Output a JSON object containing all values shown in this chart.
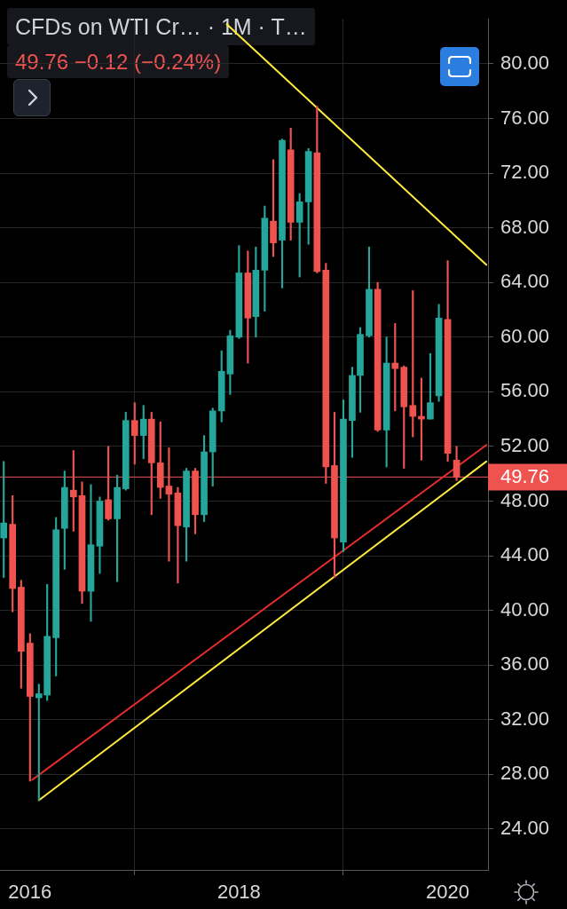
{
  "chart_data": {
    "type": "candlestick",
    "title": "CFDs on WTI Cr… · 1M · T…",
    "subtitle": "49.76 −0.12 (−0.24%)",
    "x": [
      "2015-10",
      "2015-11",
      "2015-12",
      "2016-01",
      "2016-02",
      "2016-03",
      "2016-04",
      "2016-05",
      "2016-06",
      "2016-07",
      "2016-08",
      "2016-09",
      "2016-10",
      "2016-11",
      "2016-12",
      "2017-01",
      "2017-02",
      "2017-03",
      "2017-04",
      "2017-05",
      "2017-06",
      "2017-07",
      "2017-08",
      "2017-09",
      "2017-10",
      "2017-11",
      "2017-12",
      "2018-01",
      "2018-02",
      "2018-03",
      "2018-04",
      "2018-05",
      "2018-06",
      "2018-07",
      "2018-08",
      "2018-09",
      "2018-10",
      "2018-11",
      "2018-12",
      "2019-01",
      "2019-02",
      "2019-03",
      "2019-04",
      "2019-05",
      "2019-06",
      "2019-07",
      "2019-08",
      "2019-09",
      "2019-10",
      "2019-11",
      "2019-12",
      "2020-01",
      "2020-02"
    ],
    "ohlc": [
      [
        45.3,
        50.9,
        42.4,
        46.4
      ],
      [
        46.3,
        48.4,
        39.9,
        41.6
      ],
      [
        41.7,
        42.2,
        34.3,
        37.0
      ],
      [
        37.6,
        38.3,
        27.5,
        33.7
      ],
      [
        33.6,
        34.6,
        26.1,
        33.9
      ],
      [
        33.8,
        41.9,
        33.4,
        38.1
      ],
      [
        38.0,
        46.8,
        35.2,
        45.9
      ],
      [
        46.0,
        50.2,
        43.0,
        49.0
      ],
      [
        48.8,
        51.7,
        45.8,
        48.3
      ],
      [
        48.4,
        49.4,
        40.5,
        41.4
      ],
      [
        41.4,
        49.2,
        39.2,
        44.8
      ],
      [
        44.7,
        48.3,
        42.7,
        48.0
      ],
      [
        48.1,
        52.0,
        46.6,
        46.7
      ],
      [
        46.7,
        49.9,
        42.1,
        49.0
      ],
      [
        48.9,
        54.5,
        48.8,
        53.9
      ],
      [
        53.9,
        55.2,
        50.7,
        52.8
      ],
      [
        52.8,
        55.0,
        51.1,
        54.0
      ],
      [
        54.0,
        54.5,
        47.0,
        50.8
      ],
      [
        50.8,
        53.8,
        48.2,
        49.0
      ],
      [
        49.1,
        51.9,
        43.6,
        48.5
      ],
      [
        48.6,
        49.0,
        42.0,
        46.2
      ],
      [
        46.1,
        50.4,
        43.6,
        50.2
      ],
      [
        50.2,
        50.4,
        45.6,
        47.0
      ],
      [
        47.0,
        52.8,
        46.5,
        51.6
      ],
      [
        51.6,
        54.8,
        49.1,
        54.6
      ],
      [
        54.6,
        59.0,
        53.8,
        57.5
      ],
      [
        57.3,
        60.5,
        55.8,
        60.1
      ],
      [
        60.0,
        66.7,
        59.9,
        64.7
      ],
      [
        64.7,
        66.3,
        58.1,
        61.4
      ],
      [
        61.5,
        66.6,
        60.0,
        64.9
      ],
      [
        64.9,
        69.6,
        61.9,
        68.7
      ],
      [
        68.5,
        73.0,
        65.9,
        66.9
      ],
      [
        67.1,
        74.5,
        63.6,
        74.4
      ],
      [
        73.7,
        75.3,
        67.1,
        68.4
      ],
      [
        68.4,
        70.5,
        64.4,
        69.9
      ],
      [
        69.9,
        73.8,
        66.8,
        73.6
      ],
      [
        73.5,
        76.9,
        64.7,
        64.8
      ],
      [
        64.9,
        65.4,
        49.3,
        50.5
      ],
      [
        50.6,
        54.5,
        42.4,
        45.3
      ],
      [
        45.0,
        55.4,
        44.3,
        54.0
      ],
      [
        53.9,
        57.8,
        51.2,
        57.2
      ],
      [
        57.2,
        60.7,
        54.5,
        60.2
      ],
      [
        60.1,
        66.6,
        60.0,
        63.5
      ],
      [
        63.5,
        64.0,
        53.1,
        53.2
      ],
      [
        53.2,
        60.0,
        50.5,
        58.1
      ],
      [
        58.1,
        61.0,
        54.6,
        57.7
      ],
      [
        57.8,
        57.9,
        50.4,
        54.9
      ],
      [
        55.0,
        63.4,
        52.7,
        54.2
      ],
      [
        54.2,
        57.0,
        51.0,
        54.0
      ],
      [
        54.0,
        58.8,
        54.0,
        55.2
      ],
      [
        55.7,
        62.4,
        55.3,
        61.4
      ],
      [
        61.3,
        65.6,
        50.9,
        51.5
      ],
      [
        51.0,
        52.0,
        49.5,
        49.76
      ]
    ],
    "colors": [
      "#26a69a",
      "#ef5350",
      "#ef5350",
      "#ef5350",
      "#26a69a",
      "#26a69a",
      "#26a69a",
      "#26a69a",
      "#ef5350",
      "#ef5350",
      "#26a69a",
      "#26a69a",
      "#ef5350",
      "#26a69a",
      "#26a69a",
      "#ef5350",
      "#26a69a",
      "#ef5350",
      "#ef5350",
      "#ef5350",
      "#ef5350",
      "#26a69a",
      "#ef5350",
      "#26a69a",
      "#26a69a",
      "#26a69a",
      "#26a69a",
      "#26a69a",
      "#ef5350",
      "#26a69a",
      "#26a69a",
      "#ef5350",
      "#26a69a",
      "#ef5350",
      "#26a69a",
      "#26a69a",
      "#ef5350",
      "#ef5350",
      "#ef5350",
      "#26a69a",
      "#26a69a",
      "#26a69a",
      "#26a69a",
      "#ef5350",
      "#26a69a",
      "#ef5350",
      "#ef5350",
      "#ef5350",
      "#ef5350",
      "#26a69a",
      "#26a69a",
      "#ef5350",
      "#ef5350"
    ],
    "series": [
      {
        "type": "line",
        "color": "#ffeb3b",
        "x": [
          "2017-11-19",
          "2020-05-15"
        ],
        "values": [
          82.9,
          65.3
        ]
      },
      {
        "type": "line",
        "color": "#e32b2b",
        "x": [
          "2016-01-09",
          "2020-05-15"
        ],
        "values": [
          27.6,
          52.1
        ]
      },
      {
        "type": "line",
        "color": "#ffeb3b",
        "x": [
          "2016-02",
          "2020-05-15"
        ],
        "values": [
          26.1,
          50.9
        ]
      }
    ],
    "xlim": [
      "2015-09-18",
      "2020-05-21"
    ],
    "xticks": [
      "2016",
      "2018",
      "2020"
    ],
    "ylim": [
      21.0,
      83.3
    ],
    "yticks": [
      {
        "value": 24,
        "label": "24.00"
      },
      {
        "value": 28,
        "label": "28.00"
      },
      {
        "value": 32,
        "label": "32.00"
      },
      {
        "value": 36,
        "label": "36.00"
      },
      {
        "value": 40,
        "label": "40.00"
      },
      {
        "value": 44,
        "label": "44.00"
      },
      {
        "value": 48,
        "label": "48.00"
      },
      {
        "value": 52,
        "label": "52.00"
      },
      {
        "value": 56,
        "label": "56.00"
      },
      {
        "value": 60,
        "label": "60.00"
      },
      {
        "value": 64,
        "label": "64.00"
      },
      {
        "value": 68,
        "label": "68.00"
      },
      {
        "value": 72,
        "label": "72.00"
      },
      {
        "value": 76,
        "label": "76.00"
      },
      {
        "value": 80,
        "label": "80.00"
      }
    ],
    "ref_lines": [
      {
        "axis": "y",
        "value": 49.76,
        "label": "49.76",
        "color": "#ef5350"
      }
    ],
    "grid": true
  }
}
